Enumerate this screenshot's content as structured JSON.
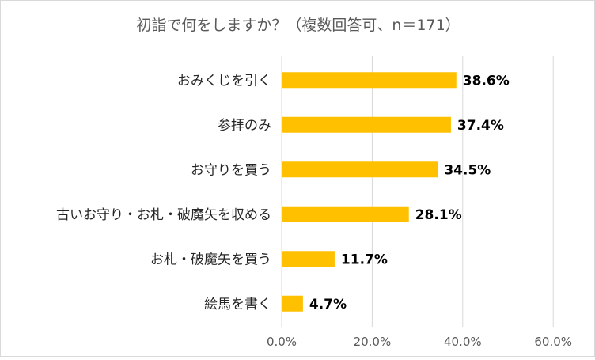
{
  "colors": {
    "bar": "#FFC000",
    "grid": "#D9D9D9",
    "border": "#D9D9D9"
  },
  "chart_data": {
    "type": "bar",
    "orientation": "horizontal",
    "title": "初詣で何をしますか？（複数回答可、n＝171）",
    "categories": [
      "おみくじを引く",
      "参拝のみ",
      "お守りを買う",
      "古いお守り・お札・破魔矢を収める",
      "お札・破魔矢を買う",
      "絵馬を書く"
    ],
    "values": [
      38.6,
      37.4,
      34.5,
      28.1,
      11.7,
      4.7
    ],
    "data_labels": [
      "38.6%",
      "37.4%",
      "34.5%",
      "28.1%",
      "11.7%",
      "4.7%"
    ],
    "x_ticks": [
      "0.0%",
      "20.0%",
      "40.0%",
      "60.0%"
    ],
    "xlim": [
      0,
      60
    ],
    "grid": true,
    "legend": "none"
  }
}
